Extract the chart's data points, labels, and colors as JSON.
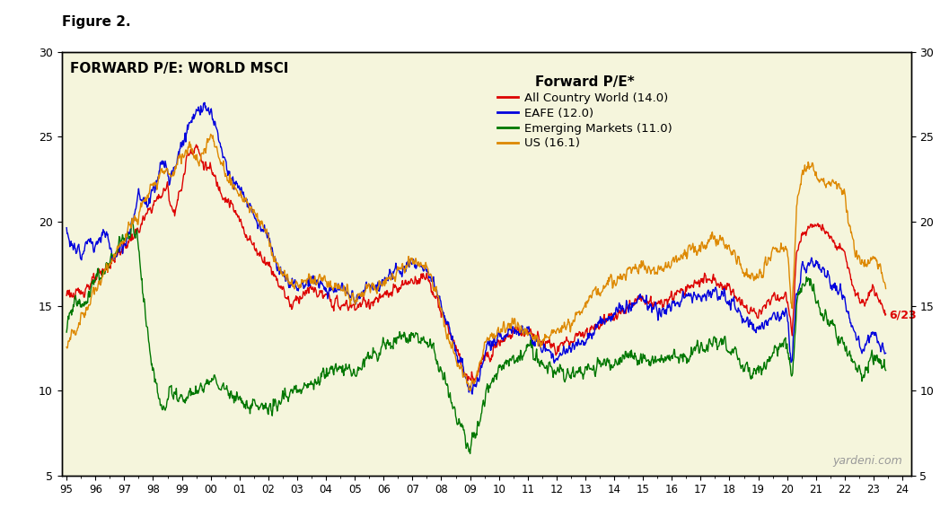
{
  "title_fig": "Figure 2.",
  "title_chart": "FORWARD P/E: WORLD MSCI",
  "legend_title": "Forward P/E*",
  "legend_entries": [
    "All Country World (14.0)",
    "EAFE (12.0)",
    "Emerging Markets (11.0)",
    "US (16.1)"
  ],
  "line_colors": [
    "#dd0000",
    "#0000dd",
    "#007700",
    "#dd8800"
  ],
  "annotation_text": "6/23",
  "annotation_color": "#dd0000",
  "watermark": "yardeni.com",
  "background_color": "#f5f5dc",
  "ylim": [
    5,
    30
  ],
  "yticks": [
    5,
    10,
    15,
    20,
    25,
    30
  ],
  "xlim_left": 1994.83,
  "xlim_right": 2024.3
}
